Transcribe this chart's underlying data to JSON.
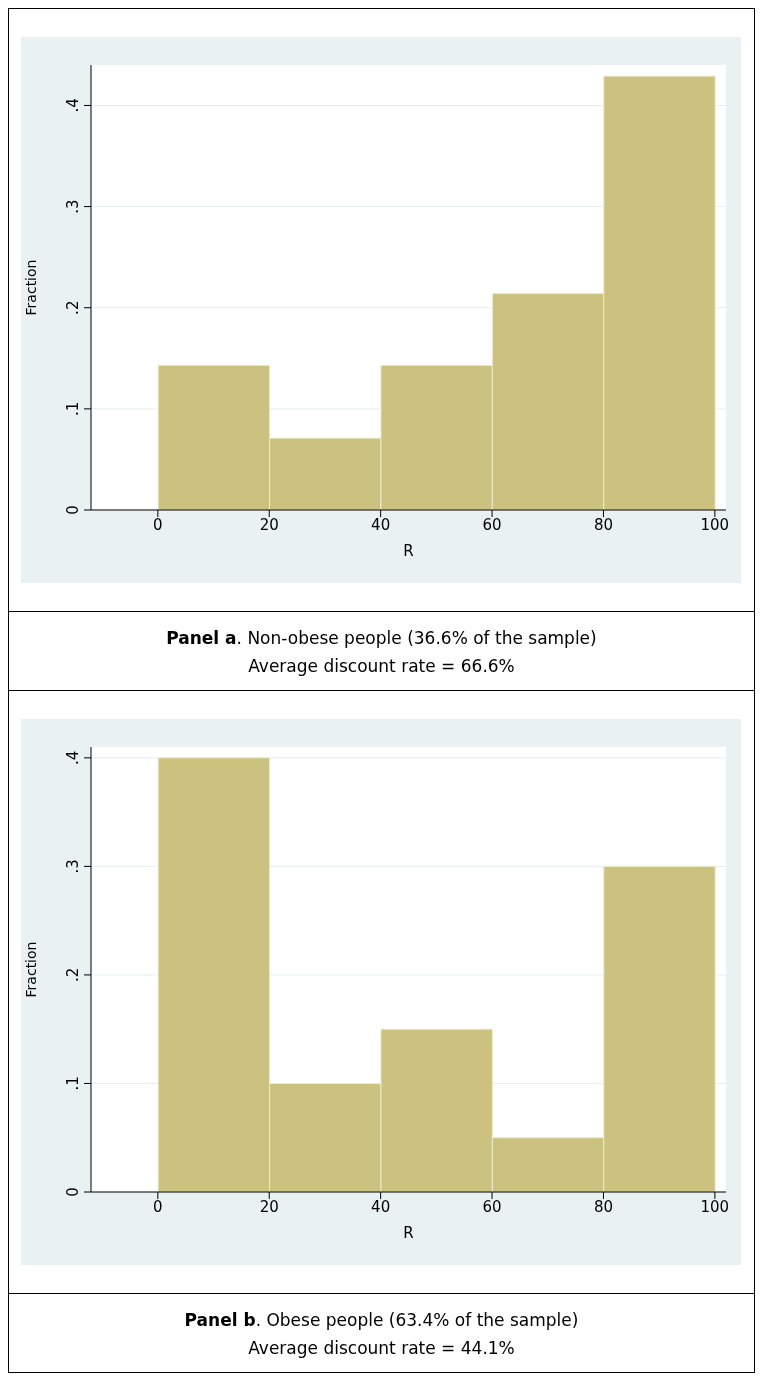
{
  "chart_data": [
    {
      "type": "histogram",
      "bins": [
        0,
        20,
        40,
        60,
        80,
        100
      ],
      "values": [
        0.143,
        0.071,
        0.143,
        0.214,
        0.429
      ],
      "color": "#cbc280",
      "xlabel": "R",
      "ylabel": "Fraction",
      "xlim": [
        -12,
        102
      ],
      "xticks": [
        0,
        20,
        40,
        60,
        80,
        100
      ],
      "ylim": [
        0,
        0.44
      ],
      "yticks": [
        0,
        {
          "value": 0.1,
          "label": ".1"
        },
        {
          "value": 0.2,
          "label": ".2"
        },
        {
          "value": 0.3,
          "label": ".3"
        },
        {
          "value": 0.4,
          "label": ".4"
        }
      ],
      "grid": "y",
      "annotations": [
        "Panel a. Non-obese people (36.6% of the sample)",
        "Average discount rate = 66.6%"
      ]
    },
    {
      "type": "histogram",
      "bins": [
        0,
        20,
        40,
        60,
        80,
        100
      ],
      "values": [
        0.4,
        0.1,
        0.15,
        0.05,
        0.3
      ],
      "color": "#cbc280",
      "xlabel": "R",
      "ylabel": "Fraction",
      "xlim": [
        -12,
        102
      ],
      "xticks": [
        0,
        20,
        40,
        60,
        80,
        100
      ],
      "ylim": [
        0,
        0.41
      ],
      "yticks": [
        0,
        {
          "value": 0.1,
          "label": ".1"
        },
        {
          "value": 0.2,
          "label": ".2"
        },
        {
          "value": 0.3,
          "label": ".3"
        },
        {
          "value": 0.4,
          "label": ".4"
        }
      ],
      "grid": "y",
      "annotations": [
        "Panel b. Obese people (63.4% of the sample)",
        "Average discount rate = 44.1%"
      ]
    }
  ]
}
